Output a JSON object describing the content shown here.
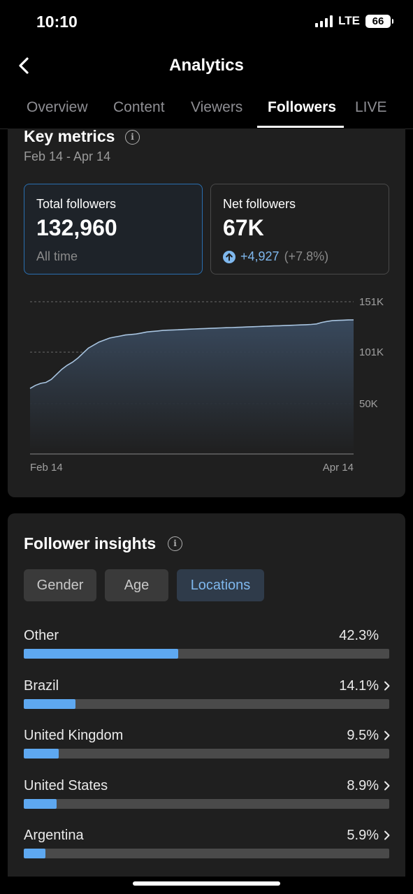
{
  "status_bar": {
    "time": "10:10",
    "network": "LTE",
    "battery": "66"
  },
  "header": {
    "title": "Analytics",
    "back_icon": "chevron-left-icon"
  },
  "tabs": [
    {
      "label": "Overview",
      "active": false
    },
    {
      "label": "Content",
      "active": false
    },
    {
      "label": "Viewers",
      "active": false
    },
    {
      "label": "Followers",
      "active": true
    },
    {
      "label": "LIVE",
      "active": false
    }
  ],
  "key_metrics": {
    "title": "Key metrics",
    "date_range": "Feb 14 - Apr 14",
    "total_followers": {
      "label": "Total followers",
      "value": "132,960",
      "sub": "All time"
    },
    "net_followers": {
      "label": "Net followers",
      "value": "67K",
      "delta": "+4,927",
      "delta_pct": "(+7.8%)"
    }
  },
  "chart_data": {
    "type": "area",
    "x_labels": [
      "Feb 14",
      "Apr 14"
    ],
    "y_ticks": [
      "151K",
      "101K",
      "50K"
    ],
    "y_tick_values": [
      151000,
      101000,
      50000
    ],
    "ylim": [
      0,
      151000
    ],
    "values": [
      65000,
      68000,
      70000,
      71000,
      74000,
      79000,
      84000,
      88000,
      91000,
      95000,
      100000,
      105000,
      108000,
      111000,
      113000,
      115000,
      116000,
      117000,
      118000,
      118500,
      119000,
      120000,
      121000,
      121500,
      122000,
      122500,
      122800,
      123000,
      123200,
      123500,
      123800,
      124000,
      124200,
      124400,
      124600,
      124800,
      125000,
      125200,
      125400,
      125600,
      125800,
      126000,
      126200,
      126400,
      126600,
      126800,
      127000,
      127200,
      127400,
      127600,
      127800,
      128000,
      128200,
      128500,
      129000,
      130500,
      131500,
      132200,
      132500,
      132700,
      132900,
      132960
    ],
    "grid": true,
    "color": "#a8c4e0"
  },
  "insights": {
    "title": "Follower insights",
    "segments": [
      {
        "label": "Gender",
        "active": false
      },
      {
        "label": "Age",
        "active": false
      },
      {
        "label": "Locations",
        "active": true
      }
    ],
    "locations": [
      {
        "name": "Other",
        "pct": "42.3%",
        "value": 42.3,
        "chevron": false
      },
      {
        "name": "Brazil",
        "pct": "14.1%",
        "value": 14.1,
        "chevron": true
      },
      {
        "name": "United Kingdom",
        "pct": "9.5%",
        "value": 9.5,
        "chevron": true
      },
      {
        "name": "United States",
        "pct": "8.9%",
        "value": 8.9,
        "chevron": true
      },
      {
        "name": "Argentina",
        "pct": "5.9%",
        "value": 5.9,
        "chevron": true
      }
    ]
  },
  "colors": {
    "accent": "#5ea8f0",
    "card_bg": "#1f1f1f",
    "selected_border": "#2a6fb0"
  }
}
